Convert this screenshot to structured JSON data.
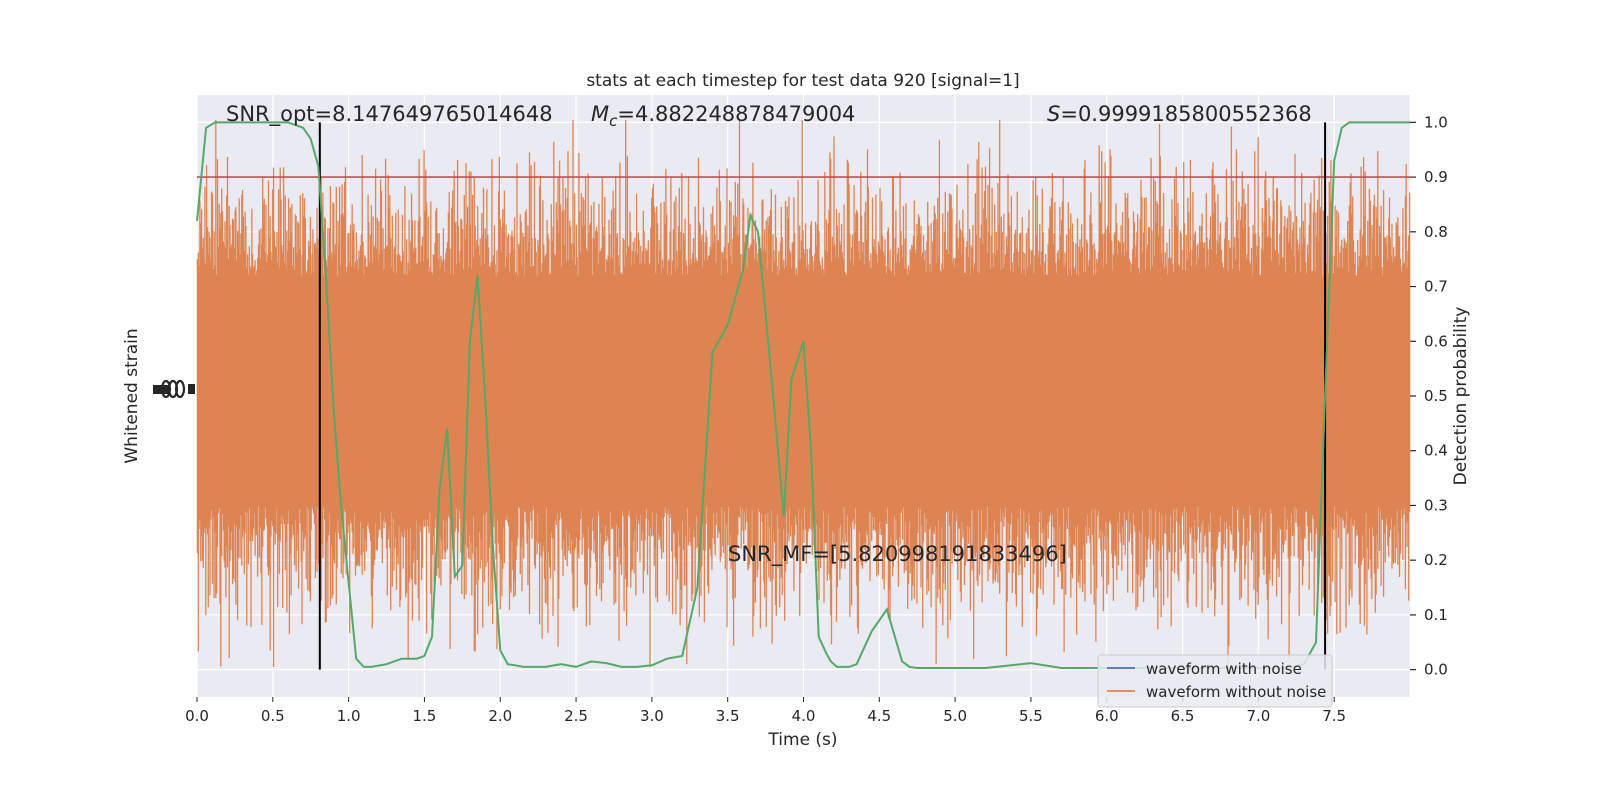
{
  "chart_data": {
    "type": "line",
    "title": "stats at each timestep for test data 920 [signal=1]",
    "xlabel": "Time (s)",
    "ylabel_left": "Whitened strain",
    "ylabel_right": "Detection probability",
    "xlim": [
      0.0,
      8.0
    ],
    "ylim_right": [
      -0.05,
      1.05
    ],
    "x_ticks": [
      "0.0",
      "0.5",
      "1.0",
      "1.5",
      "2.0",
      "2.5",
      "3.0",
      "3.5",
      "4.0",
      "4.5",
      "5.0",
      "5.5",
      "6.0",
      "6.5",
      "7.0",
      "7.5"
    ],
    "x_tick_values": [
      0,
      0.5,
      1,
      1.5,
      2,
      2.5,
      3,
      3.5,
      4,
      4.5,
      5,
      5.5,
      6,
      6.5,
      7,
      7.5
    ],
    "y_ticks_right": [
      "0.0",
      "0.1",
      "0.2",
      "0.3",
      "0.4",
      "0.5",
      "0.6",
      "0.7",
      "0.8",
      "0.9",
      "1.0"
    ],
    "y_tick_values_right": [
      0,
      0.1,
      0.2,
      0.3,
      0.4,
      0.5,
      0.6,
      0.7,
      0.8,
      0.9,
      1.0
    ],
    "annotations": {
      "snr_opt": "SNR_opt=8.147649765014648",
      "mc_symbol": "M",
      "mc_sub": "c",
      "mc_value": "=4.882248878479004",
      "s_symbol": "S",
      "s_value": "=0.9999185800552368",
      "snr_mf": "SNR_MF=[5.820998191833496]"
    },
    "threshold": 0.9,
    "vlines_x": [
      0.81,
      7.44
    ],
    "legend": {
      "placement": "lower-right",
      "entries": [
        {
          "label": "waveform with noise",
          "color": "#4c72b0"
        },
        {
          "label": "waveform without noise",
          "color": "#dd8452"
        }
      ]
    },
    "series": [
      {
        "role": "detection probability",
        "color": "#55a868",
        "x": [
          0.0,
          0.06,
          0.12,
          0.2,
          0.3,
          0.4,
          0.5,
          0.6,
          0.7,
          0.75,
          0.8,
          0.85,
          0.9,
          0.95,
          1.0,
          1.05,
          1.1,
          1.15,
          1.25,
          1.35,
          1.45,
          1.5,
          1.55,
          1.6,
          1.65,
          1.7,
          1.75,
          1.8,
          1.85,
          1.9,
          1.95,
          2.0,
          2.05,
          2.1,
          2.15,
          2.2,
          2.3,
          2.4,
          2.5,
          2.6,
          2.7,
          2.8,
          2.9,
          3.0,
          3.1,
          3.2,
          3.3,
          3.4,
          3.5,
          3.55,
          3.6,
          3.65,
          3.7,
          3.8,
          3.87,
          3.92,
          4.0,
          4.05,
          4.1,
          4.15,
          4.18,
          4.22,
          4.3,
          4.35,
          4.45,
          4.55,
          4.65,
          4.7,
          4.75,
          4.8,
          4.85,
          4.9,
          5.0,
          5.2,
          5.5,
          5.7,
          5.75,
          5.85,
          6.0,
          6.5,
          7.0,
          7.2,
          7.3,
          7.38,
          7.44,
          7.5,
          7.55,
          7.6,
          7.7,
          8.0
        ],
        "y": [
          0.82,
          0.99,
          1.0,
          1.0,
          1.0,
          1.0,
          1.0,
          1.0,
          0.99,
          0.97,
          0.92,
          0.72,
          0.48,
          0.3,
          0.16,
          0.02,
          0.005,
          0.005,
          0.01,
          0.02,
          0.02,
          0.025,
          0.06,
          0.33,
          0.44,
          0.17,
          0.19,
          0.6,
          0.72,
          0.5,
          0.23,
          0.035,
          0.01,
          0.008,
          0.005,
          0.005,
          0.005,
          0.01,
          0.005,
          0.015,
          0.012,
          0.005,
          0.005,
          0.008,
          0.02,
          0.025,
          0.15,
          0.58,
          0.63,
          0.68,
          0.73,
          0.83,
          0.8,
          0.5,
          0.28,
          0.53,
          0.6,
          0.4,
          0.06,
          0.03,
          0.015,
          0.005,
          0.005,
          0.01,
          0.07,
          0.11,
          0.015,
          0.005,
          0.003,
          0.003,
          0.003,
          0.003,
          0.003,
          0.003,
          0.012,
          0.003,
          0.003,
          0.003,
          0.003,
          0.003,
          0.003,
          0.003,
          0.01,
          0.05,
          0.5,
          0.93,
          0.99,
          1.0,
          1.0,
          1.0
        ]
      }
    ]
  }
}
